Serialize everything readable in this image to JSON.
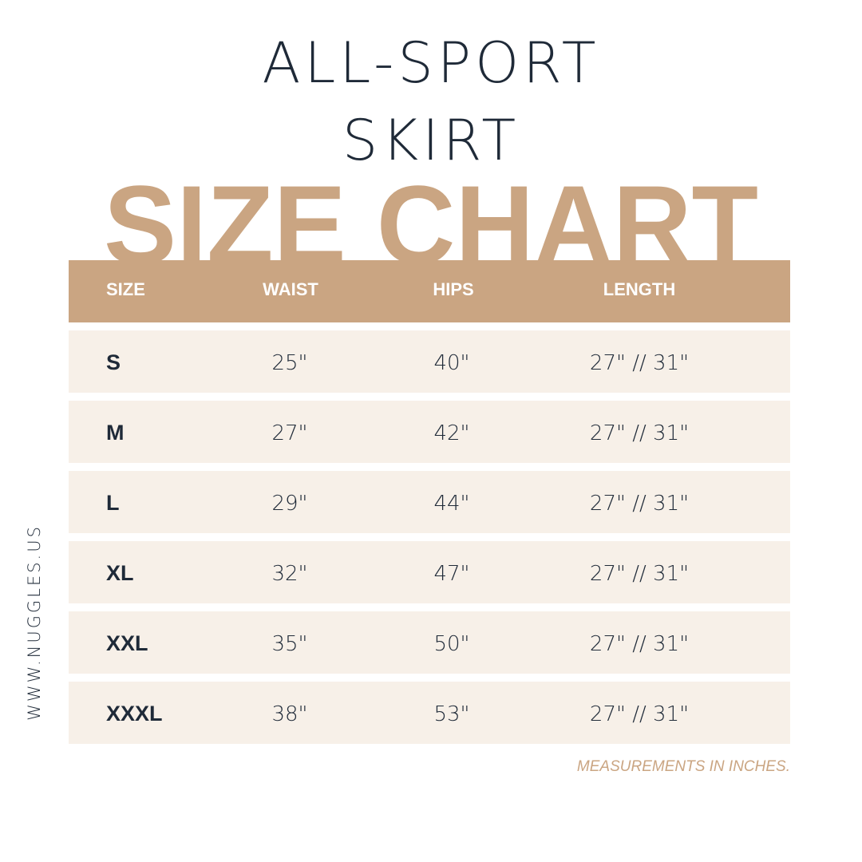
{
  "title_line1": "ALL-SPORT",
  "title_line2": "SKIRT",
  "heading": "SIZE CHART",
  "colors": {
    "accent": "#caa582",
    "row_bg": "#f7f0e8",
    "text": "#1f2a38"
  },
  "table": {
    "headers": [
      "SIZE",
      "WAIST",
      "HIPS",
      "LENGTH"
    ],
    "rows": [
      [
        "S",
        "25\"",
        "40\"",
        "27\" // 31\""
      ],
      [
        "M",
        "27\"",
        "42\"",
        "27\" // 31\""
      ],
      [
        "L",
        "29\"",
        "44\"",
        "27\" // 31\""
      ],
      [
        "XL",
        "32\"",
        "47\"",
        "27\" // 31\""
      ],
      [
        "XXL",
        "35\"",
        "50\"",
        "27\" // 31\""
      ],
      [
        "XXXL",
        "38\"",
        "53\"",
        "27\" // 31\""
      ]
    ]
  },
  "website": "WWW.NUGGLES.US",
  "note": "MEASUREMENTS IN INCHES."
}
